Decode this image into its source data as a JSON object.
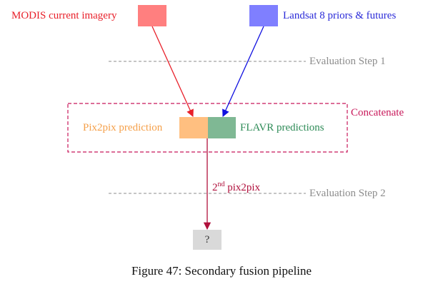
{
  "nodes": {
    "modis": {
      "label": "MODIS current imagery",
      "color": "#ff7f7f",
      "text_color": "#e8202a"
    },
    "landsat": {
      "label": "Landsat 8 priors & futures",
      "color": "#7f7fff",
      "text_color": "#2a2ad8"
    },
    "pix2pix": {
      "label": "Pix2pix prediction",
      "color": "#ffbf80",
      "text_color": "#f5a04a"
    },
    "flavr": {
      "label": "FLAVR predictions",
      "color": "#7fb894",
      "text_color": "#2e8b57"
    },
    "output": {
      "label": "?",
      "color": "#d9d9d9",
      "text_color": "#333333"
    }
  },
  "evaluation_steps": [
    {
      "label": "Evaluation Step 1"
    },
    {
      "label": "Evaluation Step 2"
    }
  ],
  "group": {
    "label": "Concatenate",
    "color": "#c8185a"
  },
  "edge": {
    "label_prefix": "2",
    "label_sup": "nd",
    "label_suffix": " pix2pix",
    "color": "#b0103c"
  },
  "arrow_colors": {
    "modis": "#e8202a",
    "landsat": "#1010e0"
  },
  "dash_color": "#8c8c8c",
  "caption": "Figure 47: Secondary fusion pipeline"
}
